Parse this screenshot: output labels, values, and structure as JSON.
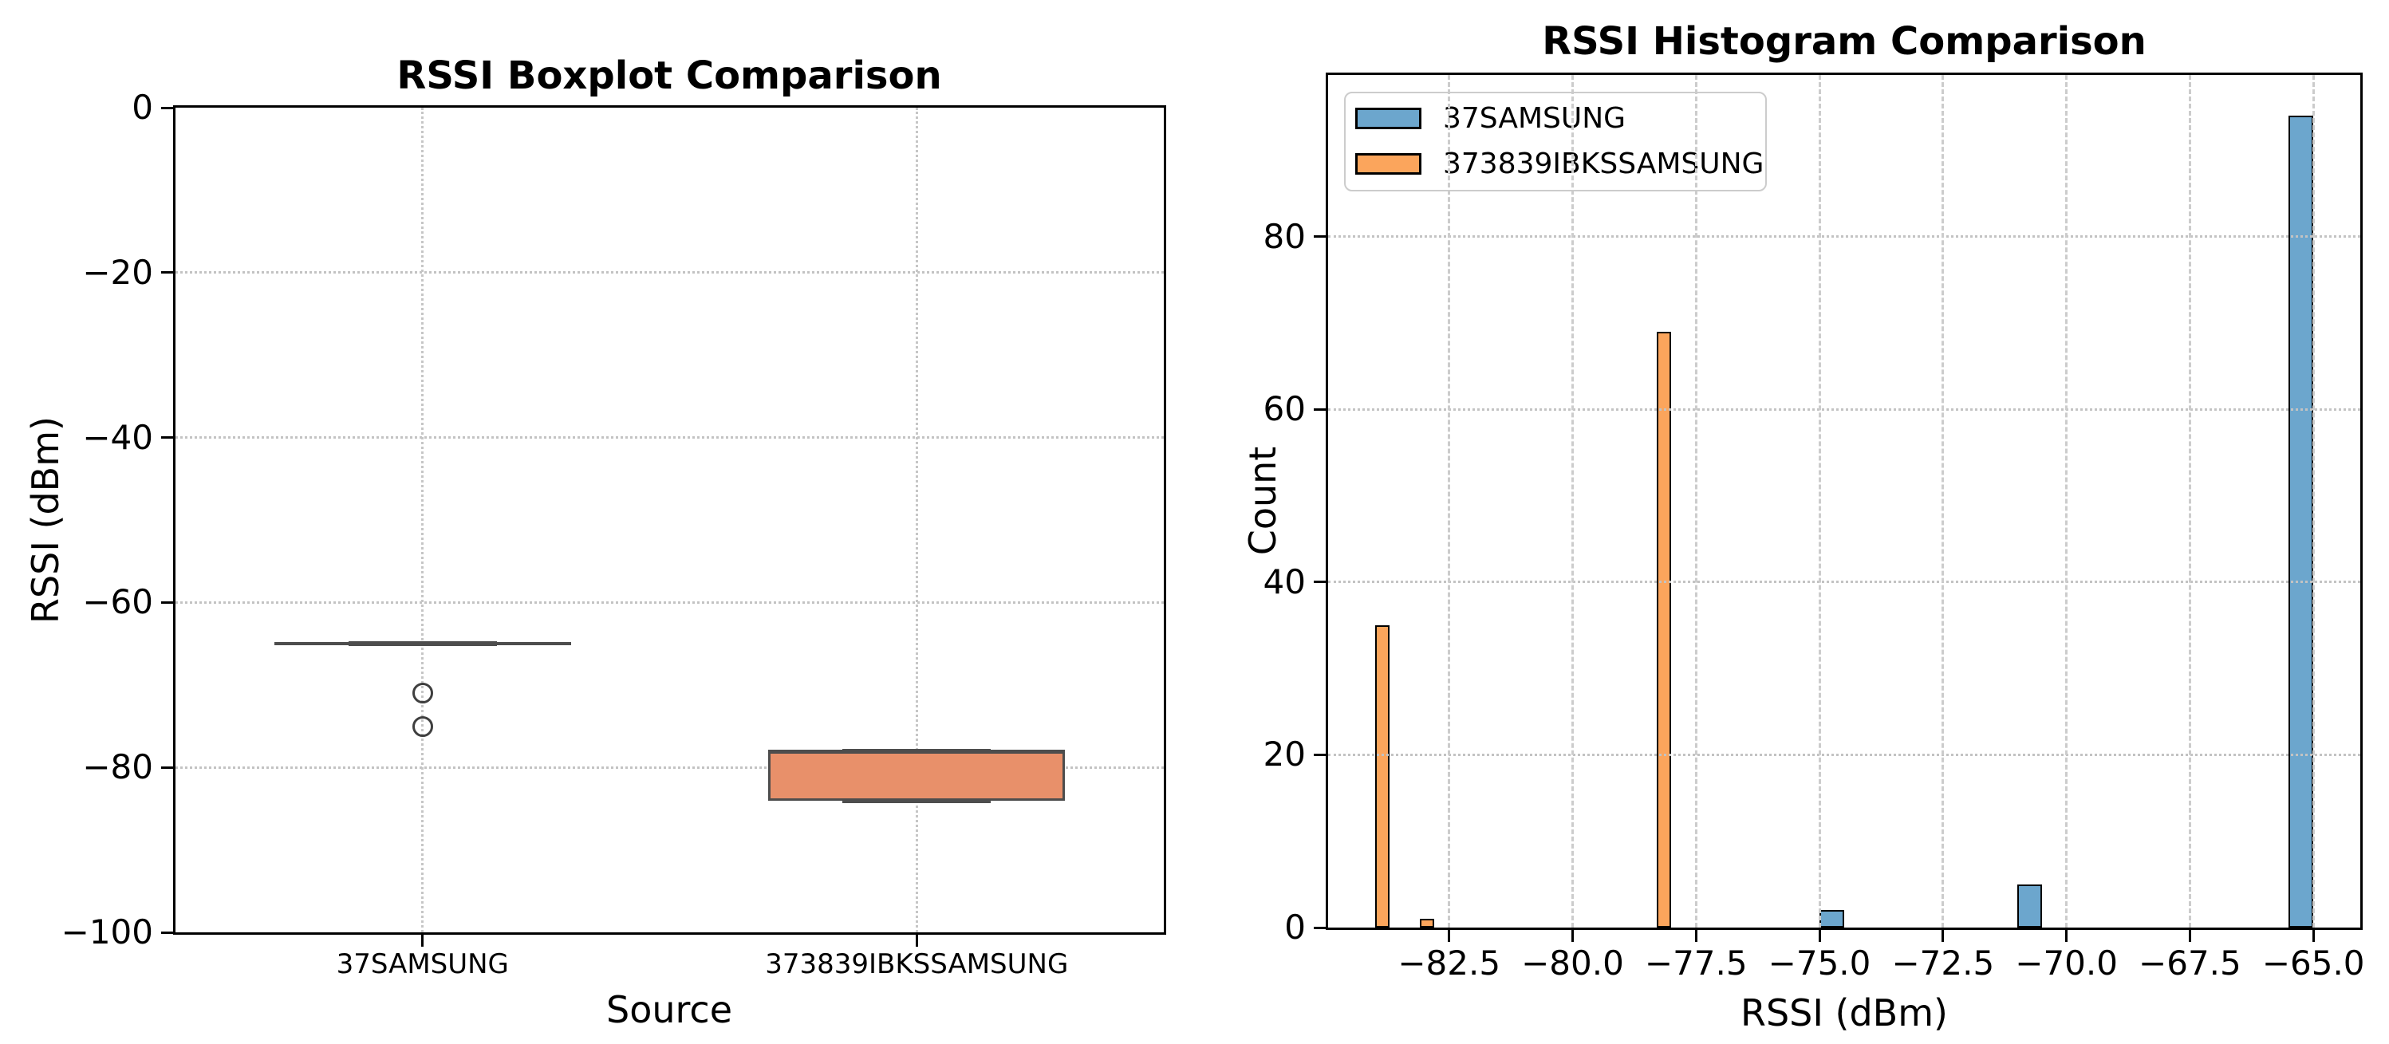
{
  "figure": {
    "background": "#ffffff"
  },
  "chart_data": [
    {
      "type": "box",
      "title": "RSSI Boxplot Comparison",
      "xlabel": "Source",
      "ylabel": "RSSI (dBm)",
      "categories": [
        "37SAMSUNG",
        "373839IBKSSAMSUNG"
      ],
      "ylim": [
        -100,
        0
      ],
      "yticks": [
        {
          "value": 0,
          "label": "0"
        },
        {
          "value": -20,
          "label": "−20"
        },
        {
          "value": -40,
          "label": "−40"
        },
        {
          "value": -60,
          "label": "−60"
        },
        {
          "value": -80,
          "label": "−80"
        },
        {
          "value": -100,
          "label": "−100"
        }
      ],
      "grid": {
        "horizontal": "dotted",
        "vertical": "dotted"
      },
      "box_width_fraction": 0.3,
      "cap_width_fraction": 0.15,
      "boxes": [
        {
          "category": "37SAMSUNG",
          "q1": -65,
          "median": -65,
          "q3": -65,
          "whisker_low": -65,
          "whisker_high": -65,
          "outliers": [
            -71,
            -75
          ],
          "fill_color": "#E8906A",
          "edge_color": "#4d4d4d"
        },
        {
          "category": "373839IBKSSAMSUNG",
          "q1": -84,
          "median": -78,
          "q3": -78,
          "whisker_low": -84,
          "whisker_high": -78,
          "outliers": [],
          "fill_color": "#E8906A",
          "edge_color": "#4d4d4d"
        }
      ]
    },
    {
      "type": "histogram",
      "title": "RSSI Histogram Comparison",
      "xlabel": "RSSI (dBm)",
      "ylabel": "Count",
      "xlim": [
        -84.95,
        -64.05
      ],
      "ylim": [
        0,
        98.7
      ],
      "xticks": [
        {
          "value": -82.5,
          "label": "−82.5"
        },
        {
          "value": -80.0,
          "label": "−80.0"
        },
        {
          "value": -77.5,
          "label": "−77.5"
        },
        {
          "value": -75.0,
          "label": "−75.0"
        },
        {
          "value": -72.5,
          "label": "−72.5"
        },
        {
          "value": -70.0,
          "label": "−70.0"
        },
        {
          "value": -67.5,
          "label": "−67.5"
        },
        {
          "value": -65.0,
          "label": "−65.0"
        }
      ],
      "yticks": [
        {
          "value": 0,
          "label": "0"
        },
        {
          "value": 20,
          "label": "20"
        },
        {
          "value": 40,
          "label": "40"
        },
        {
          "value": 60,
          "label": "60"
        },
        {
          "value": 80,
          "label": "80"
        }
      ],
      "grid": {
        "horizontal": "dotted",
        "vertical": "dashed"
      },
      "legend": {
        "position": "upper-left",
        "entries": [
          {
            "label": "37SAMSUNG",
            "color": "#6CA6CD"
          },
          {
            "label": "373839IBKSSAMSUNG",
            "color": "#FBA55C"
          }
        ]
      },
      "series": [
        {
          "name": "37SAMSUNG",
          "fill_color": "#6CA6CD",
          "edge_color": "#000000",
          "bin_width": 0.5,
          "bars": [
            {
              "x_center": -74.75,
              "count": 2
            },
            {
              "x_center": -70.75,
              "count": 5
            },
            {
              "x_center": -65.25,
              "count": 94
            }
          ]
        },
        {
          "name": "373839IBKSSAMSUNG",
          "fill_color": "#FBA55C",
          "edge_color": "#000000",
          "bin_width": 0.3,
          "bars": [
            {
              "x_center": -83.85,
              "count": 35
            },
            {
              "x_center": -82.95,
              "count": 1
            },
            {
              "x_center": -78.15,
              "count": 69
            }
          ]
        }
      ]
    }
  ]
}
